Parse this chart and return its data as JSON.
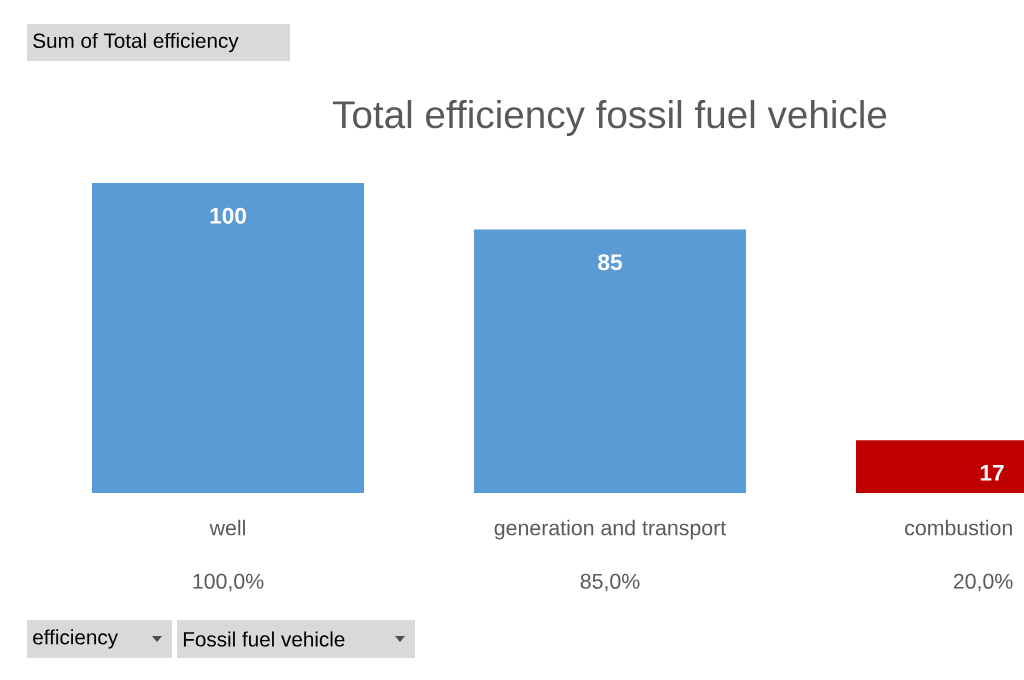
{
  "chart_data": {
    "type": "bar",
    "title": "Total efficiency fossil fuel vehicle",
    "categories": [
      "well",
      "generation and transport",
      "combustion"
    ],
    "values": [
      100,
      85,
      17
    ],
    "colors": [
      "#5b9bd5",
      "#5b9bd5",
      "#c00000"
    ],
    "data_labels": true,
    "annotations": [
      "Sum of Total efficiency",
      "100,0%",
      "85,0%",
      "20,0%",
      "efficiency",
      "Fossil fuel vehicle"
    ]
  }
}
